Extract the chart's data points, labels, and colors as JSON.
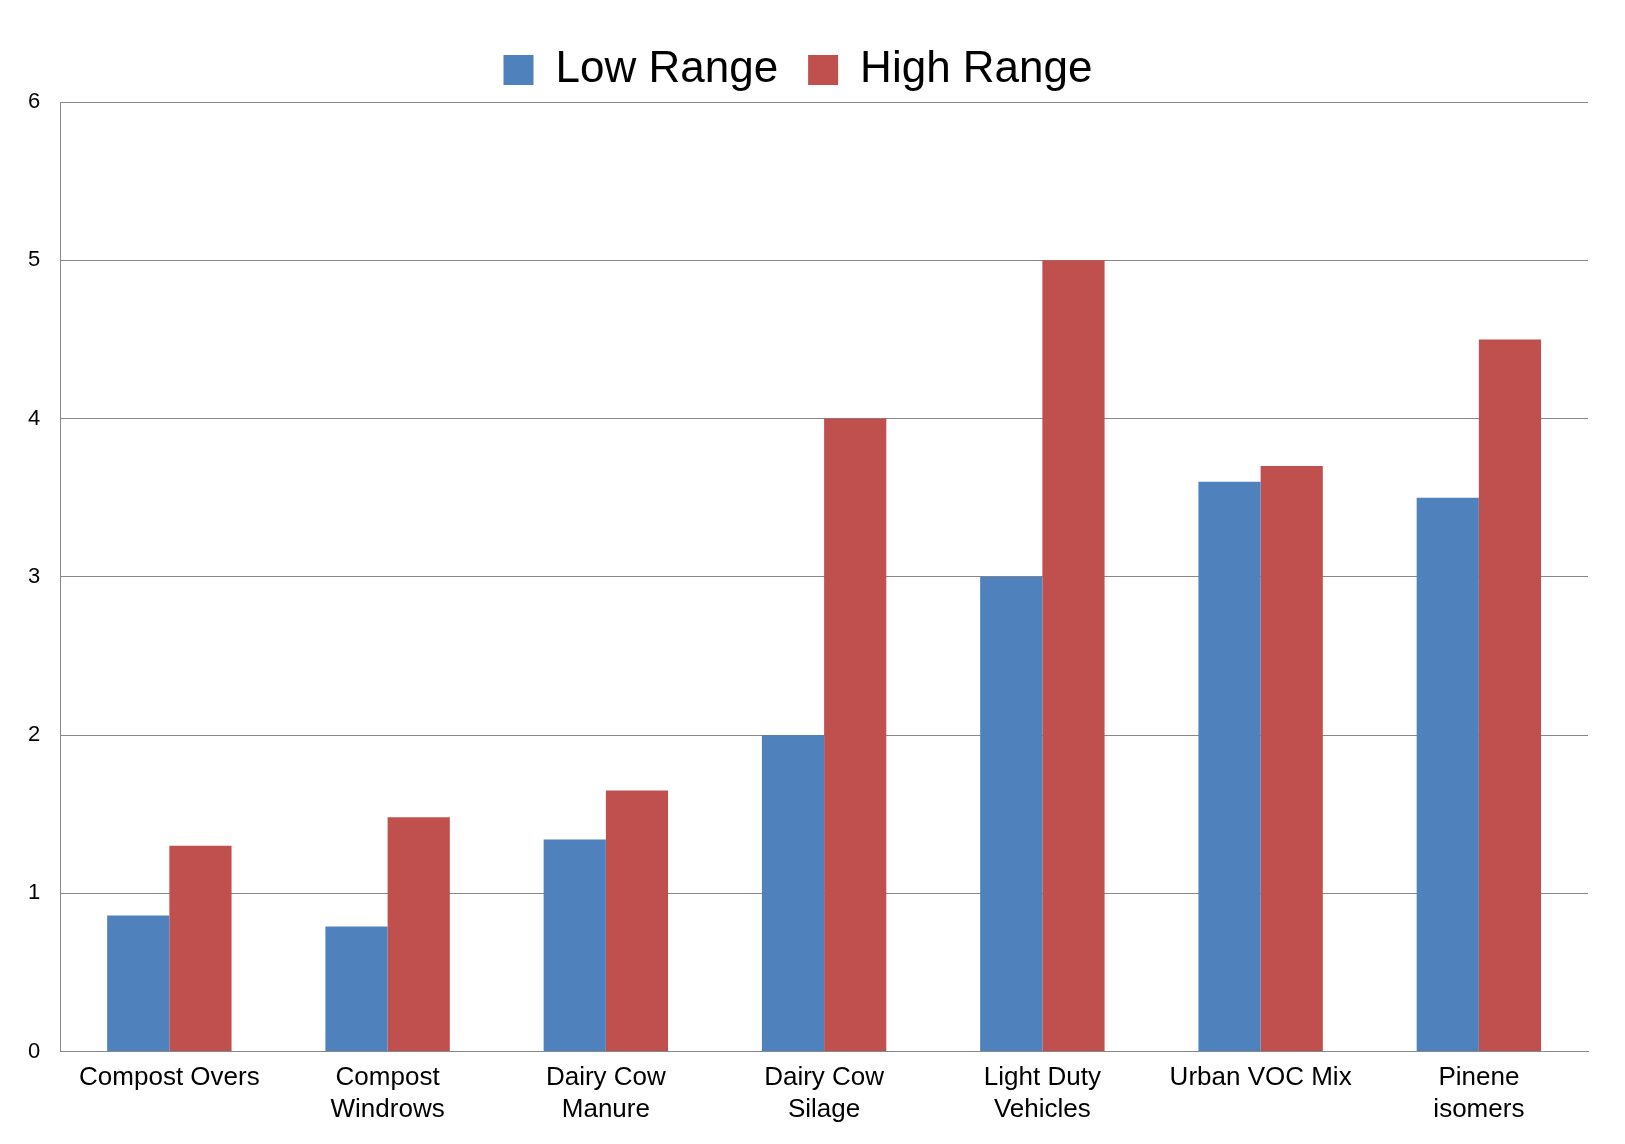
{
  "chart_data": {
    "type": "bar",
    "categories": [
      "Compost Overs",
      "Compost Windrows",
      "Dairy Cow Manure",
      "Dairy Cow Silage",
      "Light Duty Vehicles",
      "Urban VOC Mix",
      "Pinene isomers"
    ],
    "series": [
      {
        "name": "Low Range",
        "color": "#4f81bd",
        "values": [
          0.86,
          0.79,
          1.34,
          2.0,
          3.0,
          3.6,
          3.5
        ]
      },
      {
        "name": "High Range",
        "color": "#c0504d",
        "values": [
          1.3,
          1.48,
          1.65,
          4.0,
          5.0,
          3.7,
          4.5
        ]
      }
    ],
    "ylim": [
      0,
      6
    ],
    "yticks": [
      0,
      1,
      2,
      3,
      4,
      5,
      6
    ],
    "grid": "y",
    "legend": "top"
  }
}
